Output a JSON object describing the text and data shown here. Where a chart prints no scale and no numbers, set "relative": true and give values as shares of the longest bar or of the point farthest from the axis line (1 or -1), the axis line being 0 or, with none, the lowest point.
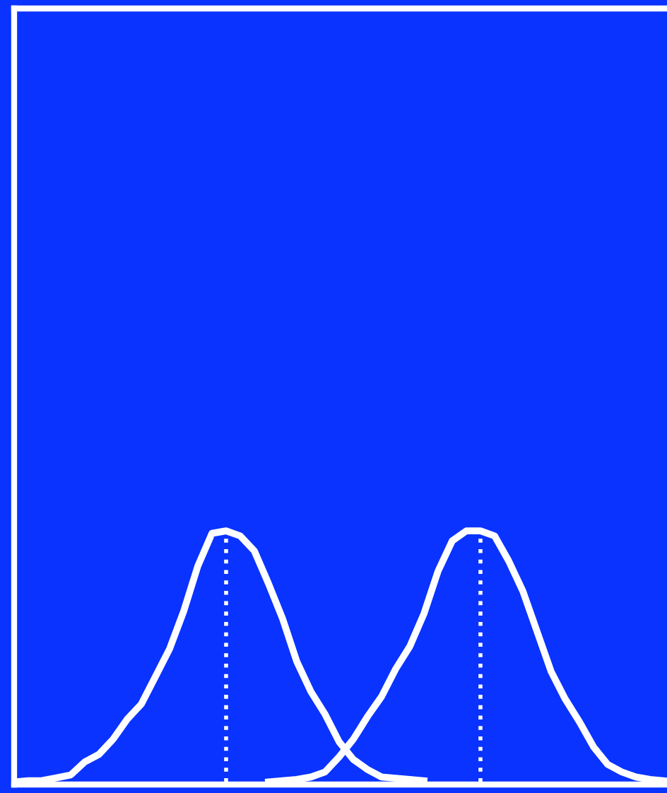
{
  "chart_data": {
    "type": "line",
    "relative": true,
    "categories": [
      null,
      null,
      null,
      null,
      null,
      null,
      null,
      null,
      null,
      null,
      null,
      null,
      null,
      null,
      null,
      null,
      null,
      null,
      null,
      null,
      null,
      null,
      null,
      null,
      null,
      null,
      null,
      null,
      null,
      null,
      null,
      null,
      null,
      null,
      null,
      null,
      null,
      null,
      null,
      null,
      null,
      null,
      null,
      null,
      null,
      null,
      null
    ],
    "series": [
      {
        "color": "#ffffff",
        "values": [
          0,
          0.005,
          0.006,
          0.017,
          0.028,
          0.08,
          0.11,
          0.17,
          0.25,
          0.31,
          0.42,
          0.53,
          0.68,
          0.86,
          0.99,
          1.0,
          0.98,
          0.92,
          0.79,
          0.65,
          0.48,
          0.36,
          0.27,
          0.16,
          0.09,
          0.05,
          0.02,
          0.015,
          0.01,
          0.005,
          null,
          null,
          null,
          null,
          null,
          null,
          null,
          null,
          null,
          null,
          null,
          null,
          null,
          null,
          null,
          null,
          null
        ]
      },
      {
        "color": "#ffffff",
        "values": [
          null,
          null,
          null,
          null,
          null,
          null,
          null,
          null,
          null,
          null,
          null,
          null,
          null,
          null,
          null,
          null,
          null,
          null,
          0,
          0.005,
          0.01,
          0.02,
          0.04,
          0.1,
          0.17,
          0.26,
          0.34,
          0.45,
          0.54,
          0.67,
          0.84,
          0.96,
          1.0,
          1.0,
          0.98,
          0.88,
          0.76,
          0.6,
          0.44,
          0.33,
          0.24,
          0.14,
          0.07,
          0.04,
          0.02,
          0.01,
          0.005
        ]
      }
    ],
    "line_style": "solid",
    "marker": "none",
    "legend": false
  }
}
